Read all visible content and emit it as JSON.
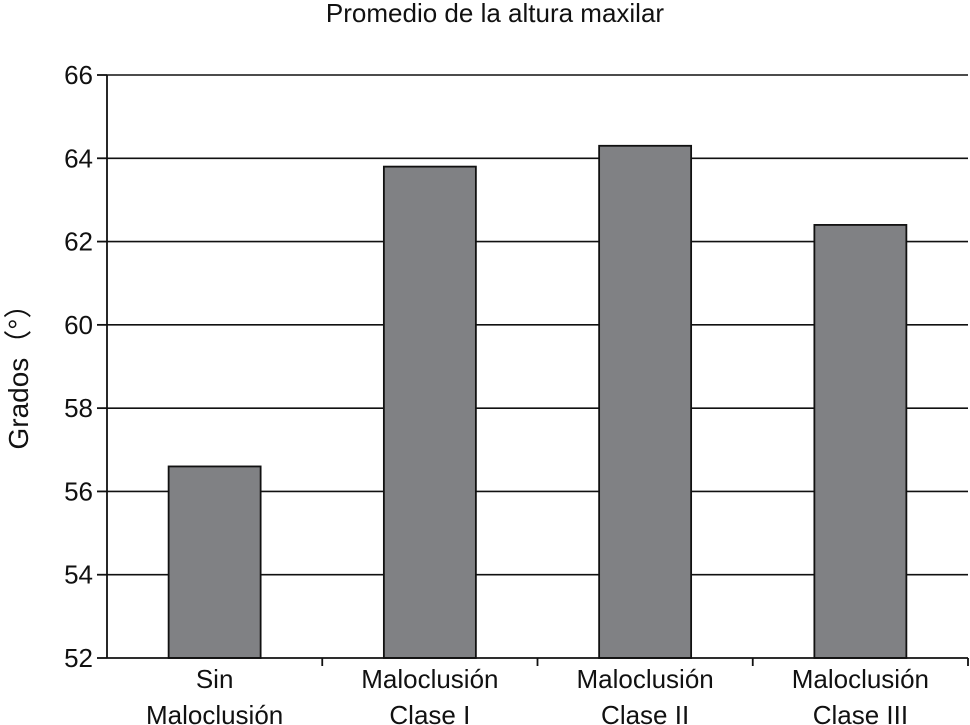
{
  "chart_data": {
    "type": "bar",
    "title": "Promedio de la altura maxilar",
    "ylabel": "Grados（°）",
    "xlabel": "",
    "categories": [
      [
        "Sin",
        "Maloclusión"
      ],
      [
        "Maloclusión",
        "Clase I"
      ],
      [
        "Maloclusión",
        "Clase II"
      ],
      [
        "Maloclusión",
        "Clase III"
      ]
    ],
    "values": [
      56.6,
      63.8,
      64.3,
      62.4
    ],
    "ylim": [
      52,
      66
    ],
    "yticks": [
      "52",
      "54",
      "56",
      "58",
      "60",
      "62",
      "64",
      "66"
    ],
    "grid": true,
    "bar_color": "#808184"
  }
}
